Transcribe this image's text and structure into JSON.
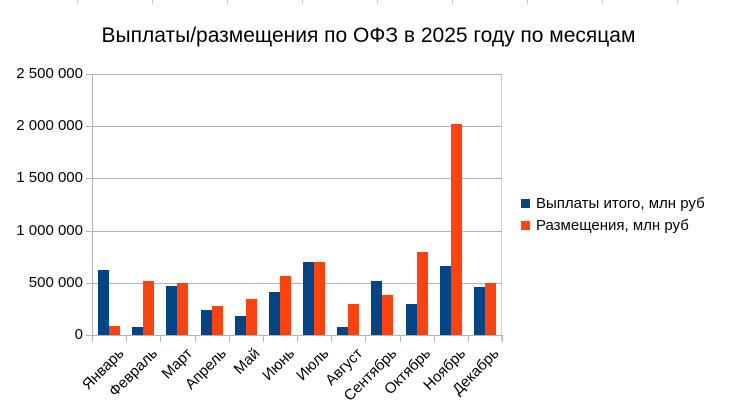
{
  "chart_data": {
    "type": "bar",
    "title": "Выплаты/размещения по ОФЗ в 2025 году по месяцам",
    "xlabel": "",
    "ylabel": "",
    "ylim": [
      0,
      2500000
    ],
    "yticks": [
      0,
      500000,
      1000000,
      1500000,
      2000000,
      2500000
    ],
    "ytick_labels": [
      "0",
      "500 000",
      "1 000 000",
      "1 500 000",
      "2 000 000",
      "2 500 000"
    ],
    "grid": true,
    "legend_position": "right",
    "categories": [
      "Январь",
      "Февраль",
      "Март",
      "Апрель",
      "Май",
      "Июнь",
      "Июль",
      "Август",
      "Сентябрь",
      "Октябрь",
      "Ноябрь",
      "Декабрь"
    ],
    "series": [
      {
        "name": "Выплаты итого, млн руб",
        "color": "#004586",
        "values": [
          626000,
          76000,
          472000,
          237000,
          180000,
          411000,
          702000,
          79000,
          514000,
          296000,
          659000,
          464000
        ]
      },
      {
        "name": "Размещения, млн руб",
        "color": "#ff420e",
        "values": [
          85000,
          522000,
          500000,
          278000,
          342000,
          569000,
          702000,
          300000,
          385000,
          793000,
          2023000,
          496000
        ]
      }
    ]
  }
}
